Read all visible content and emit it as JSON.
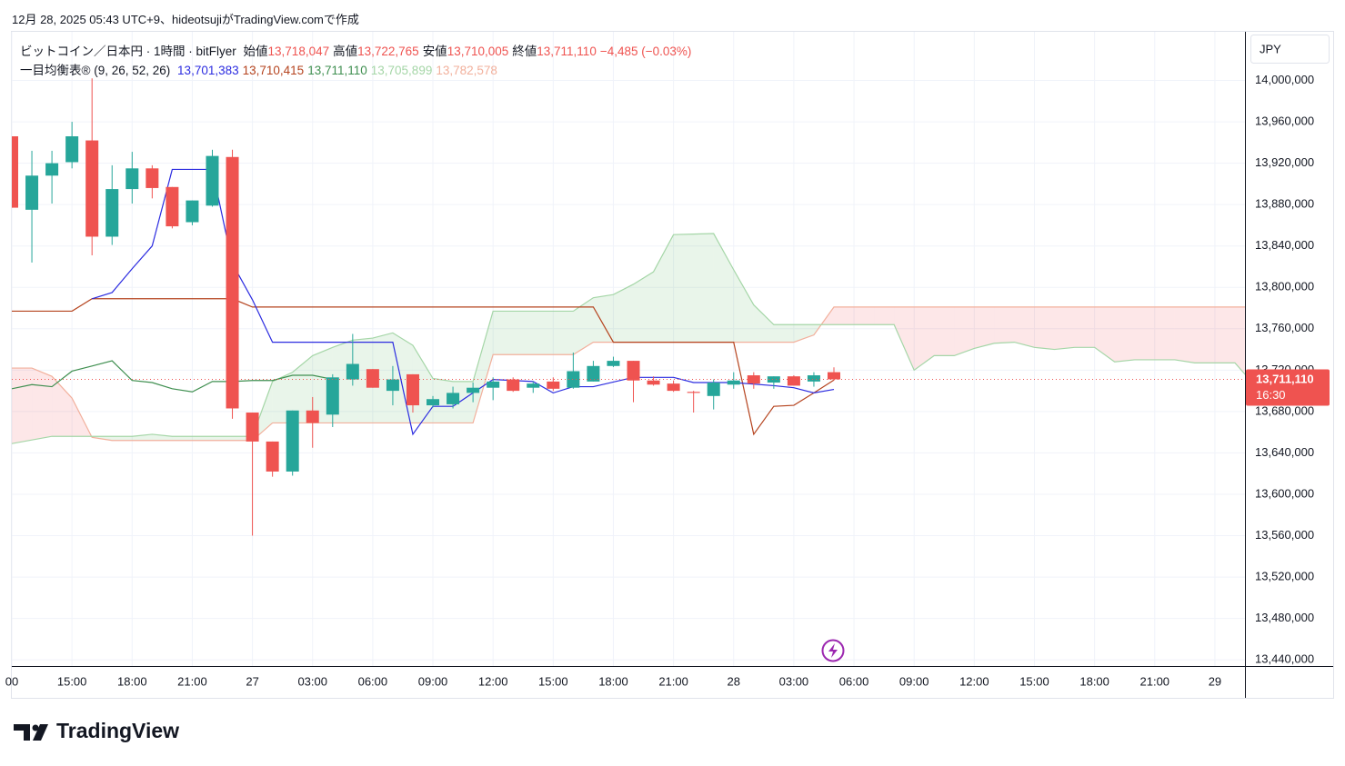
{
  "header": "12月 28, 2025 05:43 UTC+9、hideotsujiがTradingView.comで作成",
  "footer": "TradingView",
  "chart_data": {
    "type": "candlestick",
    "currency": "JPY",
    "symbol": "ビットコイン／日本円 · 1時間 · bitFlyer",
    "ohlc_legend": [
      {
        "name": "始値",
        "value": "13,718,047"
      },
      {
        "name": "高値",
        "value": "13,722,765"
      },
      {
        "name": "安値",
        "value": "13,710,005"
      },
      {
        "name": "終値",
        "value": "13,711,110"
      }
    ],
    "change": "−4,485 (−0.03%)",
    "up_color": "#26a69a",
    "down_color": "#ef5350",
    "x": [
      0,
      1,
      2,
      3,
      4,
      5,
      6,
      7,
      8,
      9,
      10,
      11,
      12,
      13,
      14,
      15,
      16,
      17,
      18,
      19,
      20,
      21,
      22,
      23,
      24,
      25,
      26,
      27,
      28,
      29,
      30,
      31,
      32,
      33,
      34,
      35,
      36,
      37,
      38,
      39,
      40,
      41
    ],
    "open": [
      13946000,
      13875000,
      13908000,
      13921000,
      13942000,
      13849000,
      13895000,
      13915000,
      13897000,
      13863000,
      13879000,
      13926000,
      13679000,
      13651000,
      13622000,
      13681000,
      13677000,
      13711000,
      13721000,
      13700000,
      13716000,
      13686000,
      13687000,
      13698000,
      13703000,
      13711000,
      13703000,
      13709000,
      13703000,
      13709000,
      13724000,
      13729000,
      13710000,
      13707000,
      13699000,
      13695000,
      13706000,
      13715000,
      13708000,
      13714000,
      13709000,
      13718047
    ],
    "high": [
      13946000,
      13932000,
      13932000,
      13960000,
      14002000,
      13918000,
      13931000,
      13918000,
      13897000,
      13884000,
      13933000,
      13933000,
      13679000,
      13651000,
      13681000,
      13694000,
      13716000,
      13755000,
      13721000,
      13724000,
      13716000,
      13695000,
      13704000,
      13708000,
      13713000,
      13713000,
      13709000,
      13713000,
      13737000,
      13729000,
      13733000,
      13729000,
      13714000,
      13710000,
      13700000,
      13711000,
      13718000,
      13718000,
      13714000,
      13715000,
      13718000,
      13722765
    ],
    "low": [
      13877000,
      13824000,
      13881000,
      13915000,
      13831000,
      13841000,
      13881000,
      13886000,
      13857000,
      13860000,
      13878000,
      13673000,
      13560000,
      13617000,
      13618000,
      13645000,
      13665000,
      13705000,
      13703000,
      13686000,
      13679000,
      13684000,
      13683000,
      13689000,
      13691000,
      13699000,
      13698000,
      13700000,
      13702000,
      13709000,
      13723000,
      13689000,
      13705000,
      13699000,
      13679000,
      13682000,
      13702000,
      13702000,
      13702000,
      13705000,
      13704000,
      13710005
    ],
    "close": [
      13877000,
      13908000,
      13920000,
      13946000,
      13849000,
      13895000,
      13915000,
      13896000,
      13859000,
      13884000,
      13927000,
      13683000,
      13651000,
      13622000,
      13681000,
      13669000,
      13713000,
      13726000,
      13703000,
      13711000,
      13686000,
      13692000,
      13698000,
      13703000,
      13709000,
      13700000,
      13707000,
      13702000,
      13719000,
      13724000,
      13729000,
      13710000,
      13706000,
      13700000,
      13698000,
      13708000,
      13710000,
      13707000,
      13714000,
      13705000,
      13715000,
      13711110
    ],
    "last_price_label": "13,711,110",
    "countdown": "16:30",
    "indicator": {
      "name": "一目均衡表®",
      "params": "(9, 26, 52, 26)",
      "cloud_up_color": "rgba(76,175,80,0.12)",
      "cloud_down_color": "rgba(242,54,69,0.12)",
      "series": [
        {
          "color": "#2c2ce0",
          "value_label": "13,701,383",
          "x": [
            4,
            5,
            6,
            7,
            8,
            9,
            10,
            11,
            12,
            13,
            19,
            20,
            21,
            22,
            23,
            24,
            26,
            27,
            28,
            29,
            31,
            33,
            34,
            36,
            38,
            39,
            40,
            41
          ],
          "values": [
            13789000,
            13795000,
            13818000,
            13840000,
            13914000,
            13914000,
            13914000,
            13823000,
            13788000,
            13747000,
            13747000,
            13658000,
            13685000,
            13685000,
            13698000,
            13711000,
            13709000,
            13698000,
            13704000,
            13704000,
            13713000,
            13713000,
            13708000,
            13708000,
            13705000,
            13703000,
            13698000,
            13701383
          ]
        },
        {
          "color": "#b5431e",
          "value_label": "13,710,415",
          "x": [
            0,
            3,
            4,
            11,
            12,
            29,
            30,
            36,
            37,
            38,
            39,
            40,
            41
          ],
          "values": [
            13777000,
            13777000,
            13789000,
            13789000,
            13781000,
            13781000,
            13747000,
            13747000,
            13658000,
            13685000,
            13686000,
            13698000,
            13710415
          ]
        },
        {
          "color": "#3f8f50",
          "value_label": "13,711,110",
          "x": [
            0,
            1,
            2,
            3,
            4,
            5,
            6,
            7,
            8,
            9,
            10,
            11,
            12,
            13,
            14,
            15,
            16
          ],
          "values": [
            13702000,
            13706000,
            13704000,
            13719000,
            13724000,
            13729000,
            13710000,
            13708000,
            13702000,
            13699000,
            13709000,
            13709000,
            13710000,
            13710000,
            13715000,
            13715000,
            13711110
          ]
        },
        {
          "color": "#a5d6a7",
          "value_label": "13,705,899",
          "x": [
            0,
            2,
            4,
            6,
            7,
            8,
            12,
            13,
            14,
            15,
            16,
            17,
            18,
            19,
            20,
            21,
            22,
            23,
            24,
            28,
            29,
            30,
            31,
            32,
            33,
            35,
            36,
            37,
            38,
            40,
            41,
            44,
            45,
            46,
            47,
            48,
            49,
            50,
            51,
            52,
            53,
            54,
            55,
            56,
            58,
            59,
            61,
            62
          ],
          "values": [
            13649000,
            13656000,
            13656000,
            13656000,
            13658000,
            13656000,
            13656000,
            13709000,
            13718000,
            13734000,
            13742000,
            13749000,
            13751000,
            13756000,
            13744000,
            13712000,
            13709000,
            13709000,
            13777000,
            13777000,
            13790000,
            13793000,
            13803000,
            13815000,
            13851000,
            13852000,
            13817000,
            13783000,
            13764000,
            13764000,
            13764000,
            13764000,
            13720000,
            13734000,
            13734000,
            13741000,
            13746000,
            13747000,
            13742000,
            13740000,
            13742000,
            13742000,
            13728000,
            13730000,
            13730000,
            13727000,
            13727000,
            13705000
          ]
        },
        {
          "color": "#f2b09c",
          "value_label": "13,782,578",
          "x": [
            0,
            1,
            2,
            3,
            4,
            5,
            12,
            13,
            23,
            24,
            28,
            29,
            39,
            40,
            41,
            62
          ],
          "values": [
            13722000,
            13722000,
            13714000,
            13693000,
            13655000,
            13652000,
            13652000,
            13669000,
            13669000,
            13735000,
            13735000,
            13747000,
            13747000,
            13754000,
            13781000,
            13781000
          ]
        }
      ]
    },
    "xlim": [
      0,
      61.5
    ],
    "xticks": [
      {
        "value": 0,
        "label": "00"
      },
      {
        "value": 3,
        "label": "15:00"
      },
      {
        "value": 6,
        "label": "18:00"
      },
      {
        "value": 9,
        "label": "21:00"
      },
      {
        "value": 12,
        "label": "27"
      },
      {
        "value": 15,
        "label": "03:00"
      },
      {
        "value": 18,
        "label": "06:00"
      },
      {
        "value": 21,
        "label": "09:00"
      },
      {
        "value": 24,
        "label": "12:00"
      },
      {
        "value": 27,
        "label": "15:00"
      },
      {
        "value": 30,
        "label": "18:00"
      },
      {
        "value": 33,
        "label": "21:00"
      },
      {
        "value": 36,
        "label": "28"
      },
      {
        "value": 39,
        "label": "03:00"
      },
      {
        "value": 42,
        "label": "06:00"
      },
      {
        "value": 45,
        "label": "09:00"
      },
      {
        "value": 48,
        "label": "12:00"
      },
      {
        "value": 51,
        "label": "15:00"
      },
      {
        "value": 54,
        "label": "18:00"
      },
      {
        "value": 57,
        "label": "21:00"
      },
      {
        "value": 60,
        "label": "29"
      }
    ],
    "ylim": [
      13434000,
      14047000
    ],
    "yticks": [
      {
        "value": 13440000,
        "label": "13,440,000"
      },
      {
        "value": 13480000,
        "label": "13,480,000"
      },
      {
        "value": 13520000,
        "label": "13,520,000"
      },
      {
        "value": 13560000,
        "label": "13,560,000"
      },
      {
        "value": 13600000,
        "label": "13,600,000"
      },
      {
        "value": 13640000,
        "label": "13,640,000"
      },
      {
        "value": 13680000,
        "label": "13,680,000"
      },
      {
        "value": 13720000,
        "label": "13,720,000"
      },
      {
        "value": 13760000,
        "label": "13,760,000"
      },
      {
        "value": 13800000,
        "label": "13,800,000"
      },
      {
        "value": 13840000,
        "label": "13,840,000"
      },
      {
        "value": 13880000,
        "label": "13,880,000"
      },
      {
        "value": 13920000,
        "label": "13,920,000"
      },
      {
        "value": 13960000,
        "label": "13,960,000"
      },
      {
        "value": 14000000,
        "label": "14,000,000"
      }
    ],
    "grid": true
  }
}
